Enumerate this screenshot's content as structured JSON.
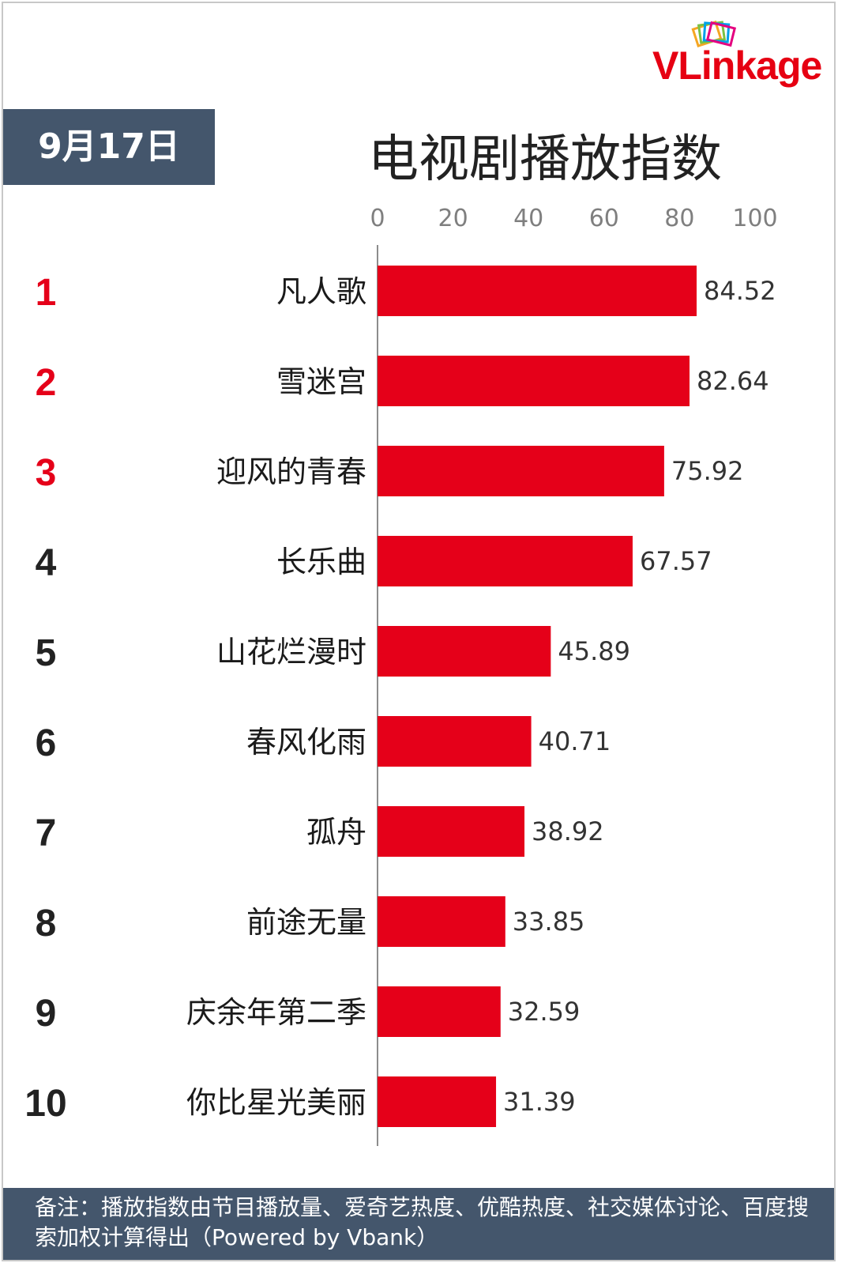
{
  "brand": {
    "logo_text": "VLinkage"
  },
  "date_label": "9月17日",
  "title": "电视剧播放指数",
  "colors": {
    "bar": "#e50019",
    "top_rank": "#e50019",
    "rank": "#222222",
    "header_bg": "#44566c"
  },
  "chart_data": {
    "type": "bar",
    "orientation": "horizontal",
    "title": "电视剧播放指数",
    "xlim": [
      0,
      100
    ],
    "x_ticks": [
      0,
      20,
      40,
      60,
      80,
      100
    ],
    "ranks": [
      "1",
      "2",
      "3",
      "4",
      "5",
      "6",
      "7",
      "8",
      "9",
      "10"
    ],
    "categories": [
      "凡人歌",
      "雪迷宫",
      "迎风的青春",
      "长乐曲",
      "山花烂漫时",
      "春风化雨",
      "孤舟",
      "前途无量",
      "庆余年第二季",
      "你比星光美丽"
    ],
    "values": [
      84.52,
      82.64,
      75.92,
      67.57,
      45.89,
      40.71,
      38.92,
      33.85,
      32.59,
      31.39
    ],
    "value_labels": [
      "84.52",
      "82.64",
      "75.92",
      "67.57",
      "45.89",
      "40.71",
      "38.92",
      "33.85",
      "32.59",
      "31.39"
    ]
  },
  "footer": {
    "note": "备注：播放指数由节目播放量、爱奇艺热度、优酷热度、社交媒体讨论、百度搜索加权计算得出（Powered by Vbank）"
  }
}
